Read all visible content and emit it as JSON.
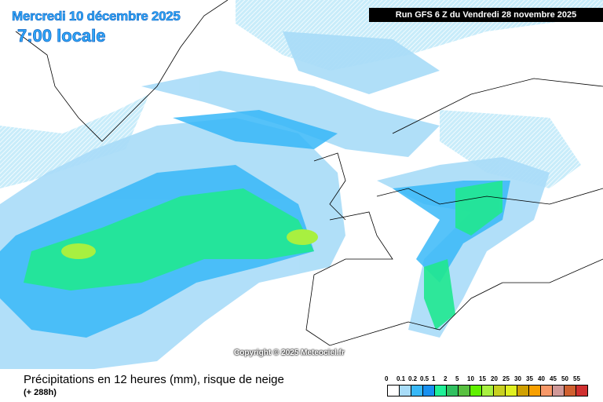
{
  "header": {
    "date": "Mercredi 10 décembre 2025",
    "time": "7:00 locale",
    "run": "Run GFS 6 Z du Vendredi 28 novembre 2025"
  },
  "copyright": "Copyright © 2025 Meteociel.fr",
  "footer": {
    "title": "Précipitations en 12 heures (mm), risque de neige",
    "subtitle": "(+ 288h)"
  },
  "legend": {
    "labels": [
      "0",
      "0.1",
      "0.2",
      "0.5",
      "1",
      "2",
      "5",
      "10",
      "15",
      "20",
      "25",
      "30",
      "35",
      "40",
      "45",
      "50",
      "55"
    ],
    "colors": [
      "#ffffff",
      "#a8dcf8",
      "#38b8f8",
      "#1890f0",
      "#20f098",
      "#30c060",
      "#58c040",
      "#60f000",
      "#a8f040",
      "#c8d020",
      "#e0f020",
      "#d0a000",
      "#f8a000",
      "#f89868",
      "#d09898",
      "#d06030",
      "#d03030"
    ]
  }
}
